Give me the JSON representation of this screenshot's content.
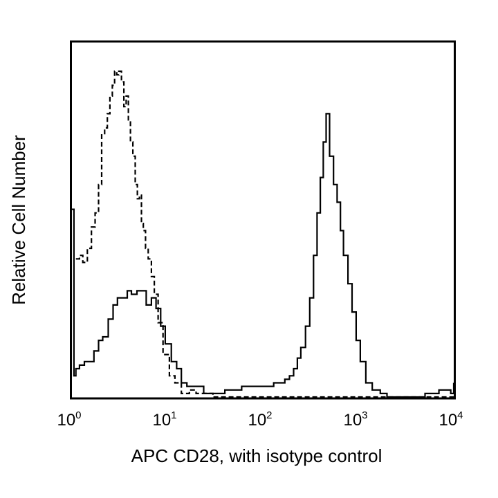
{
  "chart_data": {
    "type": "line",
    "title": "",
    "xlabel": "APC CD28, with isotype control",
    "ylabel": "Relative Cell Number",
    "x_scale": "log",
    "xlim": [
      1,
      10000
    ],
    "ylim": [
      0,
      100
    ],
    "grid": false,
    "x_ticks": [
      {
        "value": 1,
        "base": "10",
        "exp": "0"
      },
      {
        "value": 10,
        "base": "10",
        "exp": "1"
      },
      {
        "value": 100,
        "base": "10",
        "exp": "2"
      },
      {
        "value": 1000,
        "base": "10",
        "exp": "3"
      },
      {
        "value": 10000,
        "base": "10",
        "exp": "4"
      }
    ],
    "series": [
      {
        "style": "solid",
        "color": "#000000",
        "x": [
          1,
          1.05,
          1.1,
          1.2,
          1.35,
          1.5,
          1.7,
          1.9,
          2.1,
          2.4,
          2.7,
          3.0,
          3.4,
          3.8,
          4.2,
          4.8,
          5.4,
          6.0,
          6.8,
          7.6,
          8.5,
          9.5,
          11,
          12.5,
          14,
          16,
          18,
          20,
          24,
          28,
          33,
          40,
          50,
          60,
          70,
          80,
          95,
          110,
          130,
          150,
          170,
          190,
          210,
          230,
          250,
          280,
          310,
          340,
          370,
          400,
          430,
          460,
          500,
          550,
          600,
          650,
          700,
          780,
          860,
          950,
          1050,
          1200,
          1400,
          1700,
          2000,
          3000,
          5000,
          7000,
          8500,
          9300,
          10000
        ],
        "y": [
          53,
          6,
          8,
          9,
          10,
          10,
          13,
          16,
          17,
          22,
          26,
          28,
          28,
          30,
          29,
          30,
          30,
          26,
          28,
          25,
          20,
          15,
          10,
          8,
          4,
          3,
          3,
          3,
          1,
          1,
          1,
          2,
          2,
          3,
          3,
          3,
          3,
          3,
          4,
          4,
          5,
          6,
          8,
          11,
          14,
          20,
          28,
          40,
          52,
          62,
          72,
          80,
          68,
          60,
          55,
          47,
          40,
          32,
          24,
          16,
          10,
          4,
          2,
          1,
          0,
          0,
          1,
          2,
          2,
          1,
          4
        ]
      },
      {
        "style": "dashed",
        "color": "#000000",
        "x": [
          1.1,
          1.2,
          1.3,
          1.45,
          1.6,
          1.75,
          1.9,
          2.05,
          2.2,
          2.35,
          2.5,
          2.65,
          2.8,
          2.95,
          3.1,
          3.3,
          3.5,
          3.7,
          3.9,
          4.1,
          4.35,
          4.6,
          4.85,
          5.1,
          5.35,
          5.6,
          5.9,
          6.3,
          6.8,
          7.3,
          8.0,
          9.0,
          10.5,
          12,
          14,
          17,
          20,
          30,
          50,
          100,
          300,
          1000,
          10000
        ],
        "y": [
          39,
          40,
          38,
          42,
          48,
          52,
          60,
          74,
          76,
          80,
          85,
          88,
          92,
          91,
          92,
          89,
          82,
          85,
          78,
          72,
          68,
          60,
          56,
          57,
          49,
          47,
          42,
          39,
          34,
          29,
          21,
          12,
          6,
          4,
          1,
          2,
          1,
          0,
          0,
          0,
          0,
          0,
          0
        ]
      }
    ]
  }
}
